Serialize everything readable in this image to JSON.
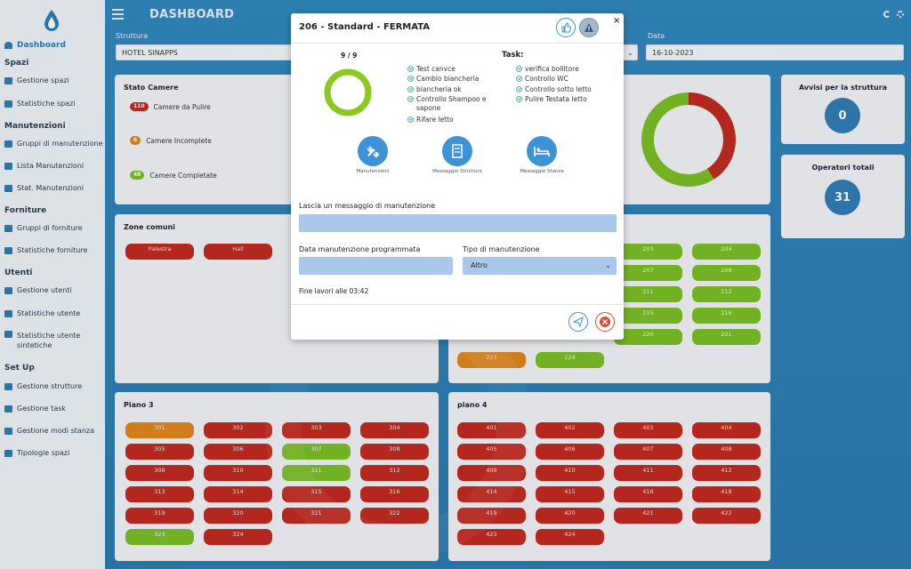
{
  "sidebar": {
    "dashboard": "Dashboard",
    "sections": [
      {
        "title": "Spazi",
        "items": [
          "Gestione spazi",
          "Statistiche spazi"
        ]
      },
      {
        "title": "Manutenzioni",
        "items": [
          "Gruppi di manutenzione",
          "Lista Manutenzioni",
          "Stat. Manutenzioni"
        ]
      },
      {
        "title": "Forniture",
        "items": [
          "Gruppi di forniture",
          "Statistiche forniture"
        ]
      },
      {
        "title": "Utenti",
        "items": [
          "Gestione utenti",
          "Statistiche utente",
          "Statistiche utente sintetiche"
        ]
      },
      {
        "title": "Set Up",
        "items": [
          "Gestione strutture",
          "Gestione task",
          "Gestione modi stanza",
          "Tipologie spazi"
        ]
      }
    ]
  },
  "header": {
    "title": "DASHBOARD"
  },
  "filters": {
    "struttura_label": "Struttura",
    "struttura_value": "HOTEL SINAPPS",
    "data_label": "Data",
    "data_value": "16-10-2023"
  },
  "stato_camere": {
    "title": "Stato Camere",
    "rows": [
      {
        "count": "110",
        "label": "Camere da Pulire",
        "color": "#c2281c"
      },
      {
        "count": "6",
        "label": "Camere Incomplete",
        "color": "#e0851b"
      },
      {
        "count": "48",
        "label": "Camere Completate",
        "color": "#7bbd22"
      }
    ]
  },
  "avvisi": {
    "title": "Avvisi per la struttura",
    "value": "0"
  },
  "operatori": {
    "title": "Operatori totali",
    "value": "31"
  },
  "zone_comuni": {
    "title": "Zone comuni",
    "rooms": [
      "Palestra",
      "Hall"
    ]
  },
  "piano2_rooms": [
    {
      "n": "203",
      "c": "green"
    },
    {
      "n": "204",
      "c": "green"
    },
    {
      "n": "207",
      "c": "green"
    },
    {
      "n": "208",
      "c": "green"
    },
    {
      "n": "211",
      "c": "green"
    },
    {
      "n": "212",
      "c": "green"
    },
    {
      "n": "215",
      "c": "green"
    },
    {
      "n": "216",
      "c": "green"
    },
    {
      "n": "220",
      "c": "green"
    },
    {
      "n": "221",
      "c": "green"
    }
  ],
  "piano2_left": [
    {
      "n": "223",
      "c": "orange"
    },
    {
      "n": "224",
      "c": "green"
    }
  ],
  "piano3": {
    "title": "Piano 3",
    "rooms": [
      {
        "n": "301",
        "c": "orange"
      },
      {
        "n": "302",
        "c": "red"
      },
      {
        "n": "303",
        "c": "red"
      },
      {
        "n": "304",
        "c": "red"
      },
      {
        "n": "305",
        "c": "red"
      },
      {
        "n": "306",
        "c": "red"
      },
      {
        "n": "307",
        "c": "green"
      },
      {
        "n": "308",
        "c": "red"
      },
      {
        "n": "309",
        "c": "red"
      },
      {
        "n": "310",
        "c": "red"
      },
      {
        "n": "311",
        "c": "green"
      },
      {
        "n": "312",
        "c": "red"
      },
      {
        "n": "313",
        "c": "red"
      },
      {
        "n": "314",
        "c": "red"
      },
      {
        "n": "315",
        "c": "red"
      },
      {
        "n": "316",
        "c": "red"
      },
      {
        "n": "319",
        "c": "red"
      },
      {
        "n": "320",
        "c": "red"
      },
      {
        "n": "321",
        "c": "red"
      },
      {
        "n": "322",
        "c": "red"
      },
      {
        "n": "323",
        "c": "green"
      },
      {
        "n": "324",
        "c": "red"
      }
    ]
  },
  "piano4": {
    "title": "piano 4",
    "rooms": [
      {
        "n": "401",
        "c": "red"
      },
      {
        "n": "402",
        "c": "red"
      },
      {
        "n": "403",
        "c": "red"
      },
      {
        "n": "404",
        "c": "red"
      },
      {
        "n": "405",
        "c": "red"
      },
      {
        "n": "406",
        "c": "red"
      },
      {
        "n": "407",
        "c": "red"
      },
      {
        "n": "408",
        "c": "red"
      },
      {
        "n": "409",
        "c": "red"
      },
      {
        "n": "410",
        "c": "red"
      },
      {
        "n": "411",
        "c": "red"
      },
      {
        "n": "412",
        "c": "red"
      },
      {
        "n": "414",
        "c": "red"
      },
      {
        "n": "415",
        "c": "red"
      },
      {
        "n": "416",
        "c": "red"
      },
      {
        "n": "418",
        "c": "red"
      },
      {
        "n": "419",
        "c": "red"
      },
      {
        "n": "420",
        "c": "red"
      },
      {
        "n": "421",
        "c": "red"
      },
      {
        "n": "422",
        "c": "red"
      },
      {
        "n": "423",
        "c": "red"
      },
      {
        "n": "424",
        "c": "red"
      }
    ]
  },
  "modal": {
    "title": "206 - Standard - FERMATA",
    "progress": "9 / 9",
    "progress_fraction": 1.0,
    "task_label": "Task:",
    "tasks_left": [
      "Test canvce",
      "Cambio biancheria",
      "biancheria ok",
      "Controllo Shampoo e sapone",
      "Rifare letto"
    ],
    "tasks_right": [
      "verifica bollitore",
      "Controllo WC",
      "Controllo sotto letto",
      "Pulire Testata letto"
    ],
    "actions": [
      "Manutenzioni",
      "Messaggio Struttura",
      "Messaggio Stanza"
    ],
    "message_label": "Lascia un messaggio di manutenzione",
    "date_label": "Data manutenzione programmata",
    "type_label": "Tipo di manutenzione",
    "type_value": "Altro",
    "fine_lavori": "Fine lavori alle 03:42"
  }
}
